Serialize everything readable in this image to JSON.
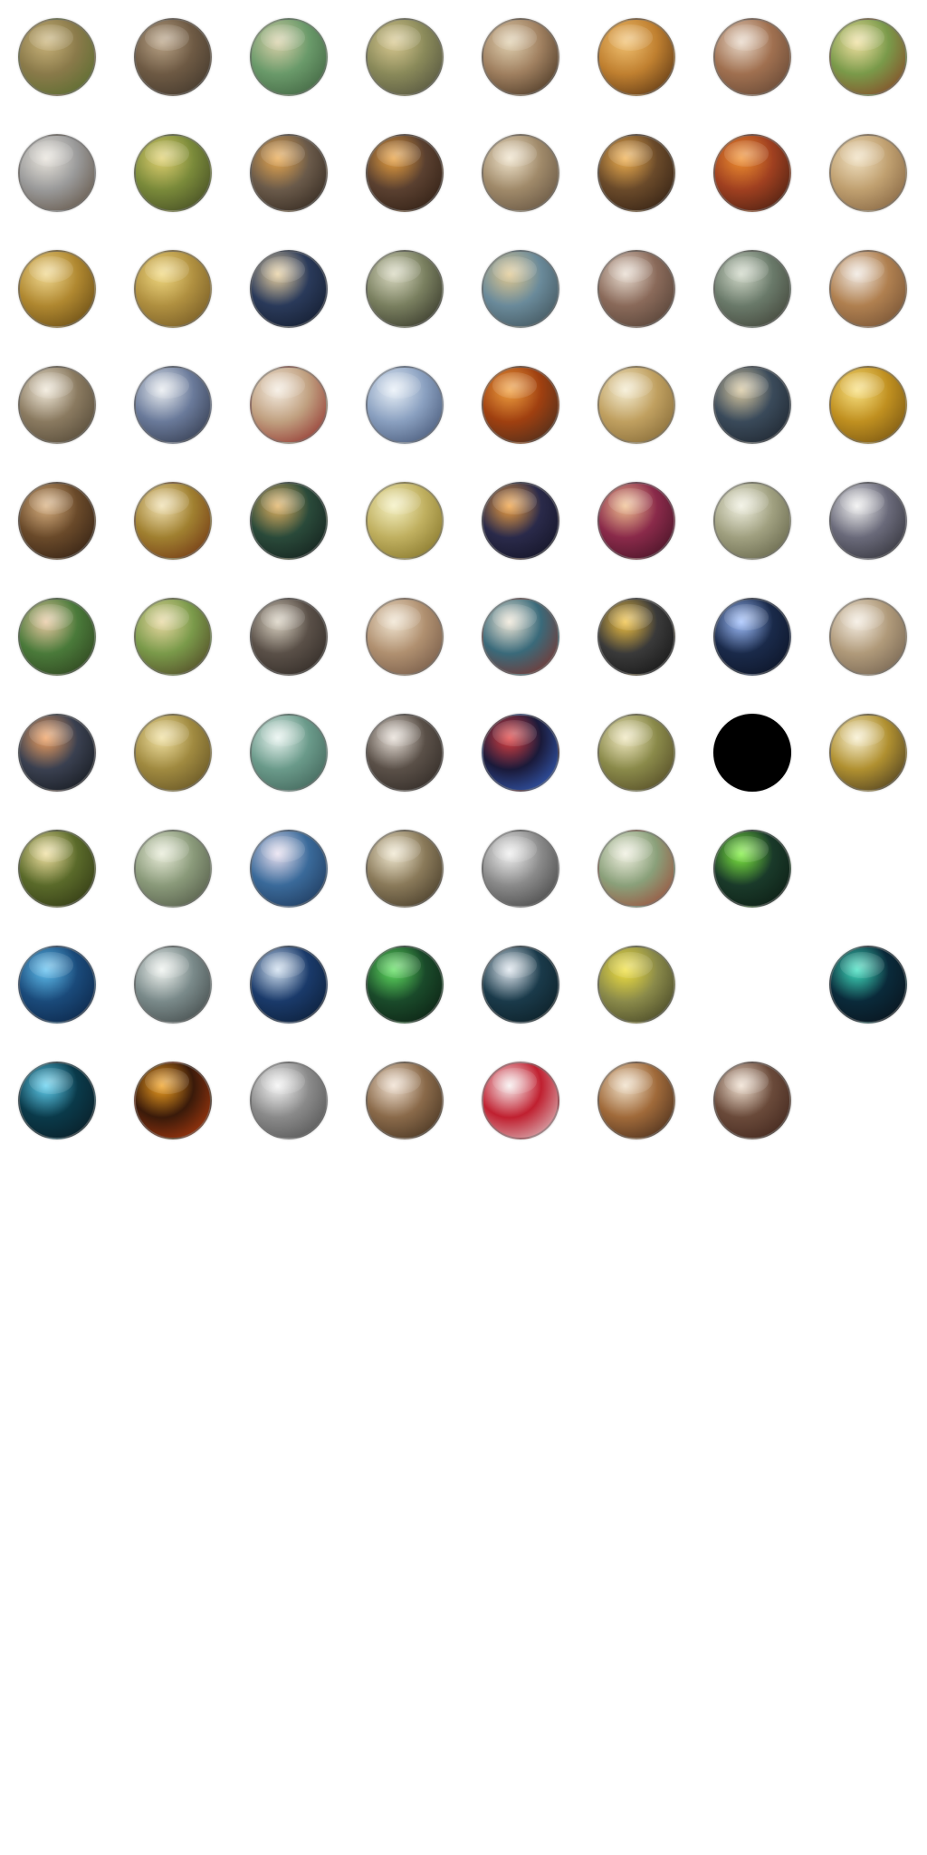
{
  "sheet": {
    "background": "#ffffff",
    "rows": [
      [
        {
          "name": "agriculture-icon",
          "colors": [
            "#8a7a4a",
            "#c9b37a",
            "#4f6a2a"
          ]
        },
        {
          "name": "mining-icon",
          "colors": [
            "#6e5a44",
            "#b9a386",
            "#3b3228"
          ]
        },
        {
          "name": "animal-husbandry-icon",
          "colors": [
            "#6a9a6a",
            "#d8d0a8",
            "#3a5a3a"
          ]
        },
        {
          "name": "the-wheel-icon",
          "colors": [
            "#8a8a5a",
            "#d8c890",
            "#4a4a3a"
          ]
        },
        {
          "name": "pottery-icon",
          "colors": [
            "#a08060",
            "#e0d0b0",
            "#3a2a1a"
          ]
        },
        {
          "name": "bronze-working-icon",
          "colors": [
            "#c08030",
            "#f0c070",
            "#4a2a10"
          ]
        },
        {
          "name": "masonry-icon",
          "colors": [
            "#a07050",
            "#e8d8c8",
            "#5a4030"
          ]
        },
        {
          "name": "archery-icon",
          "colors": [
            "#7a9a4a",
            "#f0e0a0",
            "#8a3a20"
          ]
        }
      ],
      [
        {
          "name": "writing-icon",
          "colors": [
            "#9a9a9a",
            "#e8e4dc",
            "#5a4a3a"
          ]
        },
        {
          "name": "calendar-icon",
          "colors": [
            "#7a8a3a",
            "#e0d070",
            "#3a4020"
          ]
        },
        {
          "name": "iron-working-icon",
          "colors": [
            "#6a5a4a",
            "#e8a850",
            "#2a2018"
          ]
        },
        {
          "name": "horseback-riding-icon",
          "colors": [
            "#5a4030",
            "#e8a040",
            "#2a1a10"
          ]
        },
        {
          "name": "philosophy-icon",
          "colors": [
            "#a08a6a",
            "#f0e4cc",
            "#5a4a3a"
          ]
        },
        {
          "name": "sailing-icon",
          "colors": [
            "#6a4a2a",
            "#f0b050",
            "#2a1a10"
          ]
        },
        {
          "name": "metal-casting-icon",
          "colors": [
            "#a04020",
            "#f09030",
            "#3a1a10"
          ]
        },
        {
          "name": "mathematics-icon",
          "colors": [
            "#c0a070",
            "#f0e0c0",
            "#7a5a3a"
          ]
        }
      ],
      [
        {
          "name": "thinker-statue-icon",
          "colors": [
            "#b08830",
            "#f0d890",
            "#5a4010"
          ]
        },
        {
          "name": "currency-icon",
          "colors": [
            "#b09040",
            "#f0d880",
            "#6a5020"
          ]
        },
        {
          "name": "optics-icon",
          "colors": [
            "#2a3a5a",
            "#e8d0a0",
            "#101828"
          ]
        },
        {
          "name": "engineering-icon",
          "colors": [
            "#7a8060",
            "#d8d8c0",
            "#2a2a20"
          ]
        },
        {
          "name": "construction-icon",
          "colors": [
            "#6a8a9a",
            "#e0c890",
            "#3a4a50"
          ]
        },
        {
          "name": "theology-icon",
          "colors": [
            "#8a6a5a",
            "#e8dcd0",
            "#4a3a30"
          ]
        },
        {
          "name": "civil-service-icon",
          "colors": [
            "#6a7a6a",
            "#d0d8c8",
            "#3a3a30"
          ]
        },
        {
          "name": "compass-icon",
          "colors": [
            "#b08050",
            "#f0e8e0",
            "#6a4a30"
          ]
        }
      ],
      [
        {
          "name": "education-icon",
          "colors": [
            "#8a7a60",
            "#f0e8d8",
            "#4a4030"
          ]
        },
        {
          "name": "graduation-icon",
          "colors": [
            "#6a7a9a",
            "#e8ecf0",
            "#2a3040"
          ]
        },
        {
          "name": "banking-quill-icon",
          "colors": [
            "#c0a080",
            "#f4ece0",
            "#8a2020"
          ]
        },
        {
          "name": "chivalry-icon",
          "colors": [
            "#8aa0c0",
            "#e8f0f8",
            "#3a4a6a"
          ]
        },
        {
          "name": "gunpowder-icon",
          "colors": [
            "#a04010",
            "#f0a040",
            "#3a2a20"
          ]
        },
        {
          "name": "invention-icon",
          "colors": [
            "#c0a060",
            "#f4ecd0",
            "#7a6030"
          ]
        },
        {
          "name": "printing-press-icon",
          "colors": [
            "#3a4a5a",
            "#d8c8a0",
            "#1a2028"
          ]
        },
        {
          "name": "banking-gold-icon",
          "colors": [
            "#c09020",
            "#f8e080",
            "#6a4a10"
          ]
        }
      ],
      [
        {
          "name": "economics-icon",
          "colors": [
            "#6a4a2a",
            "#d8b080",
            "#2a1a10"
          ]
        },
        {
          "name": "knight-shield-icon",
          "colors": [
            "#a08030",
            "#f0e0b0",
            "#6a2a10"
          ]
        },
        {
          "name": "astronomy-icon",
          "colors": [
            "#2a4a3a",
            "#e0b060",
            "#101a18"
          ]
        },
        {
          "name": "justice-scales-icon",
          "colors": [
            "#c0b060",
            "#f4f0c0",
            "#7a6a20"
          ]
        },
        {
          "name": "metallurgy-icon",
          "colors": [
            "#2a2a4a",
            "#f0a040",
            "#101020"
          ]
        },
        {
          "name": "navigation-globe-icon",
          "colors": [
            "#8a2a4a",
            "#f0c090",
            "#3a1020"
          ]
        },
        {
          "name": "clockwork-icon",
          "colors": [
            "#a0a080",
            "#f0f0e0",
            "#5a5a40"
          ]
        },
        {
          "name": "chemistry-icon",
          "colors": [
            "#6a6a7a",
            "#f0f0f0",
            "#2a2a30"
          ]
        }
      ],
      [
        {
          "name": "fertilizer-icon",
          "colors": [
            "#4a7a3a",
            "#e8c8a0",
            "#2a3a1a"
          ]
        },
        {
          "name": "cart-icon",
          "colors": [
            "#7a9a4a",
            "#e8d8a0",
            "#4a3a20"
          ]
        },
        {
          "name": "industrialization-icon",
          "colors": [
            "#5a5048",
            "#d8d0c0",
            "#2a2420"
          ]
        },
        {
          "name": "archaeology-icon",
          "colors": [
            "#b09070",
            "#f0e4d0",
            "#6a5040"
          ]
        },
        {
          "name": "dynamite-icon",
          "colors": [
            "#3a6a7a",
            "#f0e8d8",
            "#8a2a20"
          ]
        },
        {
          "name": "railroad-icon",
          "colors": [
            "#3a3a3a",
            "#f0c040",
            "#101010"
          ]
        },
        {
          "name": "electricity-icon",
          "colors": [
            "#1a2a4a",
            "#a0c0ff",
            "#0a1020"
          ]
        },
        {
          "name": "signing-document-icon",
          "colors": [
            "#b09a7a",
            "#f4ece0",
            "#6a5a4a"
          ]
        }
      ],
      [
        {
          "name": "combustion-engine-icon",
          "colors": [
            "#3a4050",
            "#f0a060",
            "#101418"
          ]
        },
        {
          "name": "gears-icon",
          "colors": [
            "#a08a40",
            "#f0e0a0",
            "#5a4a20"
          ]
        },
        {
          "name": "refrigeration-icon",
          "colors": [
            "#6a9a8a",
            "#e8f4f0",
            "#3a5a50"
          ]
        },
        {
          "name": "radio-operator-icon",
          "colors": [
            "#5a5048",
            "#e8e0d8",
            "#2a2420"
          ]
        },
        {
          "name": "atomic-theory-icon",
          "colors": [
            "#1a1a3a",
            "#e04040",
            "#3a6ad0"
          ]
        },
        {
          "name": "flight-icon",
          "colors": [
            "#8a8a4a",
            "#f0e8c0",
            "#4a4020"
          ]
        },
        {
          "name": "empty-slot",
          "colors": [
            "#000000",
            "#000000",
            "#000000"
          ],
          "solid": true
        },
        {
          "name": "microphone-icon",
          "colors": [
            "#b09030",
            "#f8f0d0",
            "#3a3020"
          ]
        }
      ],
      [
        {
          "name": "ecology-icon",
          "colors": [
            "#5a6a2a",
            "#f0e0a0",
            "#2a3010"
          ]
        },
        {
          "name": "satellite-dish-icon",
          "colors": [
            "#8a9a7a",
            "#e8ecd8",
            "#4a5040"
          ]
        },
        {
          "name": "toy-soldiers-icon",
          "colors": [
            "#3a6a9a",
            "#e8e0f0",
            "#1a3050"
          ]
        },
        {
          "name": "mass-media-icon",
          "colors": [
            "#8a7a5a",
            "#f0e8d0",
            "#3a3020"
          ]
        },
        {
          "name": "robotics-arm-icon",
          "colors": [
            "#8a8a8a",
            "#f0f0f0",
            "#3a3a3a"
          ]
        },
        {
          "name": "rocketry-icon",
          "colors": [
            "#8aa07a",
            "#f0f0e0",
            "#a04030"
          ]
        },
        {
          "name": "lasers-icon",
          "colors": [
            "#1a3a2a",
            "#80f040",
            "#0a1810"
          ]
        },
        {
          "name": "blank-slot",
          "colors": [
            "#ffffff",
            "#ffffff",
            "#ffffff"
          ],
          "blank": true
        }
      ],
      [
        {
          "name": "deep-sea-diver-icon",
          "colors": [
            "#1a4a7a",
            "#60c0f0",
            "#0a2040"
          ]
        },
        {
          "name": "computers-icon",
          "colors": [
            "#7a8a8a",
            "#f0f4f0",
            "#3a4040"
          ]
        },
        {
          "name": "satellites-icon",
          "colors": [
            "#1a3a6a",
            "#d0e0f0",
            "#0a1a30"
          ]
        },
        {
          "name": "radar-stealth-icon",
          "colors": [
            "#1a4a2a",
            "#60e060",
            "#0a1a10"
          ]
        },
        {
          "name": "globalization-icon",
          "colors": [
            "#1a3a4a",
            "#e0e8f0",
            "#0a1a20"
          ]
        },
        {
          "name": "mobile-tactics-icon",
          "colors": [
            "#8a8a4a",
            "#f0e040",
            "#3a3a20"
          ]
        },
        {
          "name": "blank-slot",
          "colors": [
            "#ffffff",
            "#ffffff",
            "#ffffff"
          ],
          "blank": true
        },
        {
          "name": "nanotechnology-icon",
          "colors": [
            "#0a2a3a",
            "#40e0c0",
            "#0a1018"
          ]
        }
      ],
      [
        {
          "name": "particle-physics-icon",
          "colors": [
            "#0a3a4a",
            "#60d0f0",
            "#0a1820"
          ]
        },
        {
          "name": "nuclear-fusion-icon",
          "colors": [
            "#3a1a0a",
            "#f0a020",
            "#c04010"
          ]
        },
        {
          "name": "future-tech-icon",
          "colors": [
            "#8a8a8a",
            "#f4f4f4",
            "#4a4a4a"
          ]
        },
        {
          "name": "future-combat-icon",
          "colors": [
            "#8a6a4a",
            "#f0e0d0",
            "#3a2a1a"
          ]
        },
        {
          "name": "medicine-capsules-icon",
          "colors": [
            "#c02030",
            "#f8f0f0",
            "#e0d8d8"
          ]
        },
        {
          "name": "wolf-icon",
          "colors": [
            "#a06a3a",
            "#f0e0c8",
            "#3a2418"
          ]
        },
        {
          "name": "pipe-organ-icon",
          "colors": [
            "#6a4a3a",
            "#f0e0d0",
            "#3a2018"
          ]
        }
      ]
    ]
  }
}
